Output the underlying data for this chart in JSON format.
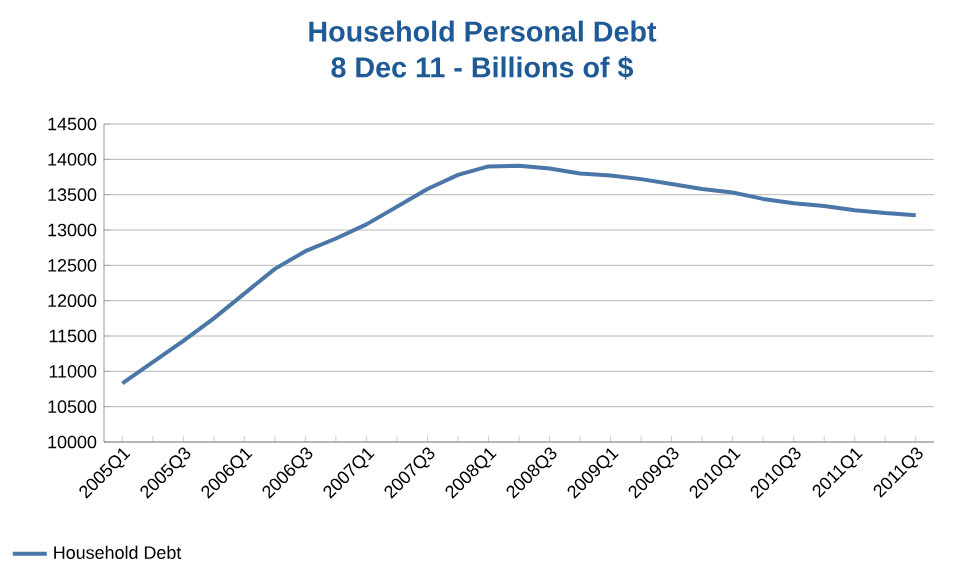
{
  "chart_data": {
    "type": "line",
    "title": "Household Personal Debt",
    "subtitle": "8 Dec 11 - Billions of $",
    "categories": [
      "2005Q1",
      null,
      "2005Q3",
      null,
      "2006Q1",
      null,
      "2006Q3",
      null,
      "2007Q1",
      null,
      "2007Q3",
      null,
      "2008Q1",
      null,
      "2008Q3",
      null,
      "2009Q1",
      null,
      "2009Q3",
      null,
      "2010Q1",
      null,
      "2010Q3",
      null,
      "2011Q1",
      null,
      "2011Q3"
    ],
    "series": [
      {
        "name": "Household Debt",
        "color": "#4a76a8",
        "values": [
          10830,
          11130,
          11430,
          11750,
          12100,
          12450,
          12700,
          12880,
          13080,
          13330,
          13580,
          13780,
          13900,
          13910,
          13870,
          13800,
          13770,
          13720,
          13650,
          13580,
          13530,
          13440,
          13380,
          13340,
          13280,
          13240,
          13210
        ]
      }
    ],
    "ylim": [
      10000,
      14500
    ],
    "yticks": [
      10000,
      10500,
      11000,
      11500,
      12000,
      12500,
      13000,
      13500,
      14000,
      14500
    ],
    "grid": "y",
    "legend": "bottom left",
    "line_style": "solid"
  }
}
